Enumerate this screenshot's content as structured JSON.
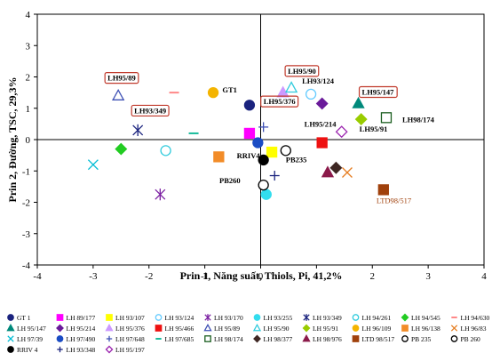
{
  "chart_data": {
    "type": "scatter",
    "title": "",
    "xlabel": "Prin 1, Năng suất, Thiols, Pi, 41,2%",
    "ylabel": "Prin 2, Đường, TSC, 29,3%",
    "xlim": [
      -4,
      4
    ],
    "ylim": [
      -4,
      4
    ],
    "xticks": [
      "-4",
      "-3",
      "-2",
      "-1",
      "0",
      "1",
      "2",
      "3",
      "4"
    ],
    "yticks": [
      "-4",
      "-3",
      "-2",
      "-1",
      "0",
      "1",
      "2",
      "3",
      "4"
    ],
    "grid": false,
    "legend_position": "bottom",
    "series": [
      {
        "name": "GT 1",
        "marker": "circle",
        "color": "#1a237e",
        "fill": true,
        "x": -0.2,
        "y": 1.1,
        "label": "GT1"
      },
      {
        "name": "LH 89/177",
        "marker": "square",
        "color": "#ff00ff",
        "fill": true,
        "x": -0.2,
        "y": 0.2
      },
      {
        "name": "LH 93/107",
        "marker": "square",
        "color": "#ffff00",
        "fill": true,
        "x": 0.2,
        "y": -0.4
      },
      {
        "name": "LH 93/124",
        "marker": "circle",
        "color": "#66ccff",
        "fill": false,
        "x": 0.9,
        "y": 1.45,
        "label": "LH93/124"
      },
      {
        "name": "LH 93/170",
        "marker": "asterisk",
        "color": "#7b1fa2",
        "fill": false,
        "x": -1.8,
        "y": -1.75
      },
      {
        "name": "LH 93/255",
        "marker": "circle",
        "color": "#33ddee",
        "fill": true,
        "x": 0.1,
        "y": -1.75
      },
      {
        "name": "LH 93/349",
        "marker": "asterisk",
        "color": "#1a237e",
        "fill": false,
        "x": -2.2,
        "y": 0.3,
        "label": "LH93/349"
      },
      {
        "name": "LH 94/261",
        "marker": "circle",
        "color": "#33ccdd",
        "fill": false,
        "x": -1.7,
        "y": -0.35
      },
      {
        "name": "LH 94/545",
        "marker": "diamond",
        "color": "#22cc22",
        "fill": true,
        "x": -2.5,
        "y": -0.3
      },
      {
        "name": "LH 94/630",
        "marker": "dash",
        "color": "#ff8888",
        "fill": false,
        "x": -1.55,
        "y": 1.5
      },
      {
        "name": "LH 95/147",
        "marker": "triangle",
        "color": "#00897b",
        "fill": true,
        "x": 1.75,
        "y": 1.15,
        "label": "LH95/147"
      },
      {
        "name": "LH 95/214",
        "marker": "diamond",
        "color": "#6a1b9a",
        "fill": true,
        "x": 1.1,
        "y": 1.15,
        "label": "LH95/214"
      },
      {
        "name": "LH 95/376",
        "marker": "triangle",
        "color": "#cc99ff",
        "fill": true,
        "x": 0.4,
        "y": 1.5,
        "label": "LH95/376"
      },
      {
        "name": "LH 95/466",
        "marker": "square",
        "color": "#ee1111",
        "fill": true,
        "x": 1.1,
        "y": -0.1
      },
      {
        "name": "LH 95/89",
        "marker": "triangle",
        "color": "#3f51b5",
        "fill": false,
        "x": -2.55,
        "y": 1.4,
        "label": "LH95/89"
      },
      {
        "name": "LH 95/90",
        "marker": "triangle",
        "color": "#33ccdd",
        "fill": false,
        "x": 0.55,
        "y": 1.65,
        "label": "LH95/90"
      },
      {
        "name": "LH 95/91",
        "marker": "diamond",
        "color": "#99cc00",
        "fill": true,
        "x": 1.8,
        "y": 0.65,
        "label": "LH95/91"
      },
      {
        "name": "LH 96/109",
        "marker": "circle",
        "color": "#f4b400",
        "fill": true,
        "x": -0.85,
        "y": 1.5
      },
      {
        "name": "LH 96/138",
        "marker": "square",
        "color": "#f28c28",
        "fill": true,
        "x": -0.75,
        "y": -0.55
      },
      {
        "name": "LH 96/83",
        "marker": "x",
        "color": "#e67e22",
        "fill": false,
        "x": 1.55,
        "y": -1.05
      },
      {
        "name": "LH 97/39",
        "marker": "x",
        "color": "#00bcd4",
        "fill": false,
        "x": -3.0,
        "y": -0.8
      },
      {
        "name": "LH 97/490",
        "marker": "circle",
        "color": "#1a4cc4",
        "fill": true,
        "x": -0.05,
        "y": -0.1
      },
      {
        "name": "LH 97/648",
        "marker": "plus",
        "color": "#3f51b5",
        "fill": false,
        "x": 0.05,
        "y": 0.4
      },
      {
        "name": "LH 97/685",
        "marker": "dash",
        "color": "#1abc9c",
        "fill": false,
        "x": -1.2,
        "y": 0.2
      },
      {
        "name": "LH 98/174",
        "marker": "square",
        "color": "#1b5e20",
        "fill": false,
        "x": 2.25,
        "y": 0.7,
        "label": "LH98/174"
      },
      {
        "name": "LH 98/377",
        "marker": "diamond",
        "color": "#3e2723",
        "fill": true,
        "x": 1.35,
        "y": -0.9
      },
      {
        "name": "LH 98/976",
        "marker": "triangle",
        "color": "#8b1a4a",
        "fill": true,
        "x": 1.2,
        "y": -1.05
      },
      {
        "name": "LTD 98/517",
        "marker": "square",
        "color": "#a0410c",
        "fill": true,
        "x": 2.2,
        "y": -1.6,
        "label": "LTD98/517"
      },
      {
        "name": "PB 235",
        "marker": "circle",
        "color": "#000000",
        "fill": false,
        "x": 0.45,
        "y": -0.35,
        "label": "PB235"
      },
      {
        "name": "PB 260",
        "marker": "circle",
        "color": "#000000",
        "fill": false,
        "x": 0.05,
        "y": -1.45,
        "label": "PB260"
      },
      {
        "name": "RRIV 4",
        "marker": "circle",
        "color": "#000000",
        "fill": true,
        "x": 0.05,
        "y": -0.65,
        "label": "RRIV4"
      },
      {
        "name": "LH 93/348",
        "marker": "plus",
        "color": "#1a237e",
        "fill": false,
        "x": 0.25,
        "y": -1.15
      },
      {
        "name": "LH 95/197",
        "marker": "diamond",
        "color": "#9c27b0",
        "fill": false,
        "x": 1.45,
        "y": 0.25
      }
    ],
    "boxed_labels": [
      "LH95/89",
      "LH93/349",
      "LH95/90",
      "LH95/376",
      "LH95/147"
    ]
  }
}
